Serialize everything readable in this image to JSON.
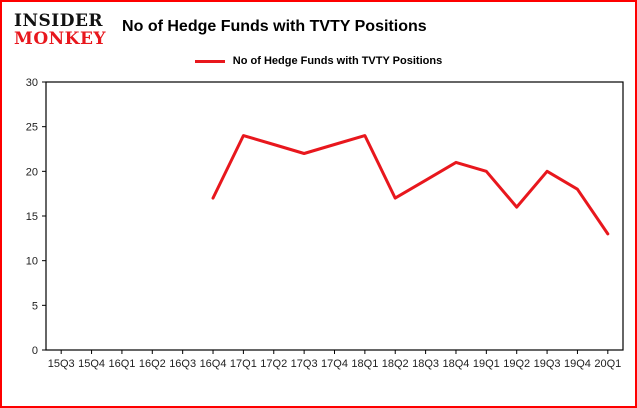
{
  "page": {
    "background": "#ffffff",
    "border_color": "#fe0000"
  },
  "brand": {
    "line1": "INSIDER",
    "line2": "MONKEY",
    "black": "#111111",
    "red": "#e8171d"
  },
  "header": {
    "title": "No of Hedge Funds with TVTY Positions"
  },
  "legend": {
    "label": "No of Hedge Funds with TVTY Positions",
    "color": "#e8171d"
  },
  "chart_data": {
    "type": "line",
    "title": "No of Hedge Funds with TVTY Positions",
    "categories": [
      "15Q3",
      "15Q4",
      "16Q1",
      "16Q2",
      "16Q3",
      "16Q4",
      "17Q1",
      "17Q2",
      "17Q3",
      "17Q4",
      "18Q1",
      "18Q2",
      "18Q3",
      "18Q4",
      "19Q1",
      "19Q2",
      "19Q3",
      "19Q4",
      "20Q1"
    ],
    "series": [
      {
        "name": "No of Hedge Funds with TVTY Positions",
        "color": "#e8171d",
        "values": [
          null,
          null,
          null,
          null,
          null,
          17,
          24,
          23,
          22,
          23,
          24,
          17,
          19,
          21,
          20,
          16,
          20,
          18,
          13
        ]
      }
    ],
    "xlabel": "",
    "ylabel": "",
    "ylim": [
      0,
      30
    ],
    "yticks": [
      0,
      5,
      10,
      15,
      20,
      25,
      30
    ],
    "grid": false,
    "legend_position": "top",
    "frame_color": "#000000"
  }
}
